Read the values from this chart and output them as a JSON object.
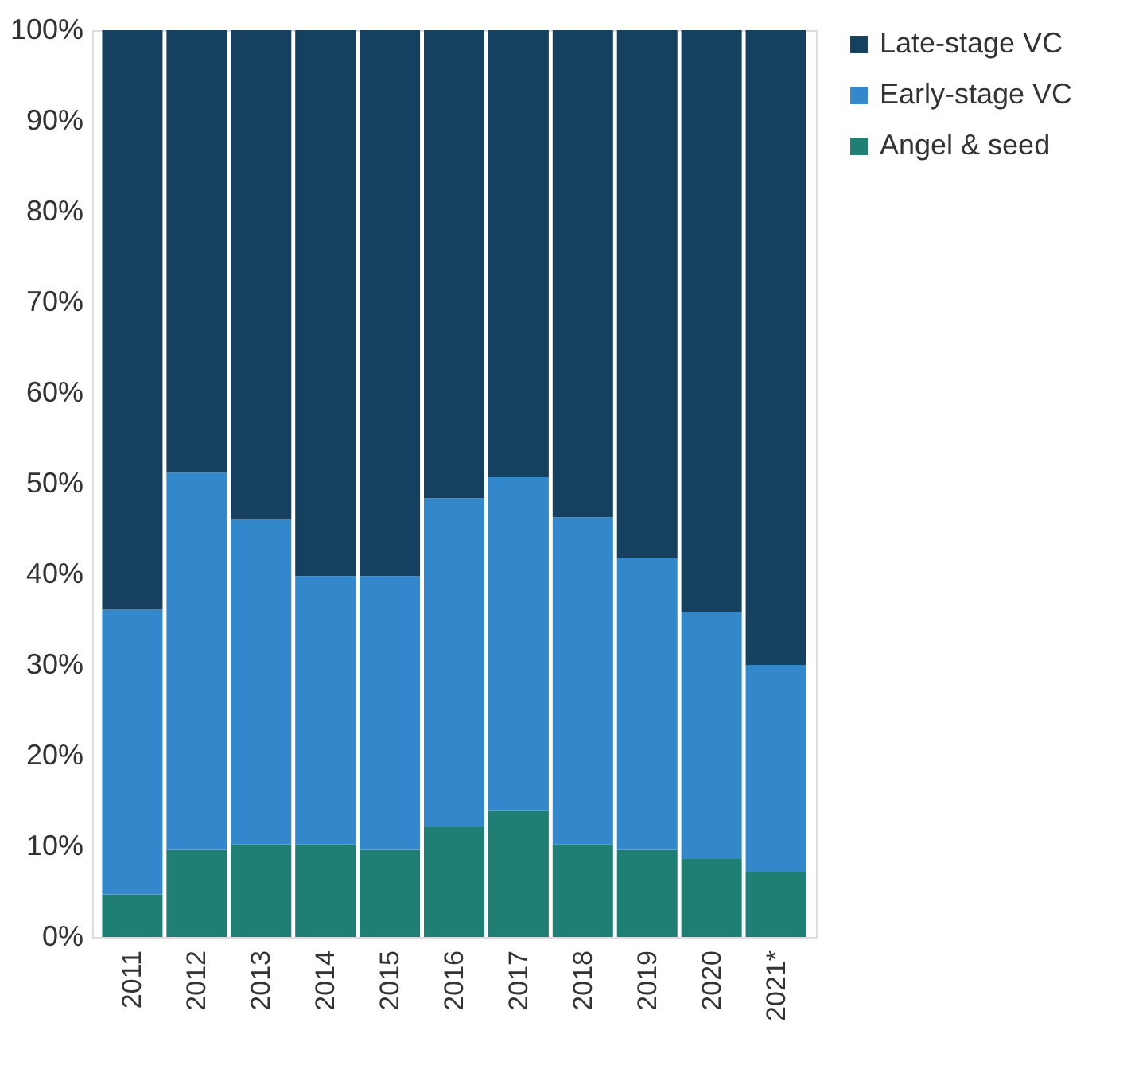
{
  "chart_data": {
    "type": "bar",
    "stacked": true,
    "categories": [
      "2011",
      "2012",
      "2013",
      "2014",
      "2015",
      "2016",
      "2017",
      "2018",
      "2019",
      "2020",
      "2021*"
    ],
    "series": [
      {
        "name": "Angel & seed",
        "color": "#1f7f74",
        "values": [
          4.7,
          9.6,
          10.2,
          10.2,
          9.6,
          12.1,
          13.9,
          10.2,
          9.6,
          8.6,
          7.2
        ]
      },
      {
        "name": "Early-stage VC",
        "color": "#3388cc",
        "values": [
          31.4,
          41.6,
          35.8,
          29.6,
          30.2,
          36.3,
          36.8,
          36.1,
          32.2,
          27.2,
          22.8
        ]
      },
      {
        "name": "Late-stage VC",
        "color": "#16405f",
        "values": [
          63.9,
          48.8,
          54.0,
          60.2,
          60.2,
          51.6,
          49.3,
          53.7,
          58.2,
          64.2,
          70.0
        ]
      }
    ],
    "ylim": [
      0,
      100
    ],
    "yticks": [
      {
        "value": 0,
        "label": "0%"
      },
      {
        "value": 10,
        "label": "10%"
      },
      {
        "value": 20,
        "label": "20%"
      },
      {
        "value": 30,
        "label": "30%"
      },
      {
        "value": 40,
        "label": "40%"
      },
      {
        "value": 50,
        "label": "50%"
      },
      {
        "value": 60,
        "label": "60%"
      },
      {
        "value": 70,
        "label": "70%"
      },
      {
        "value": 80,
        "label": "80%"
      },
      {
        "value": 90,
        "label": "90%"
      },
      {
        "value": 100,
        "label": "100%"
      }
    ],
    "grid": false,
    "legend": "top right"
  }
}
